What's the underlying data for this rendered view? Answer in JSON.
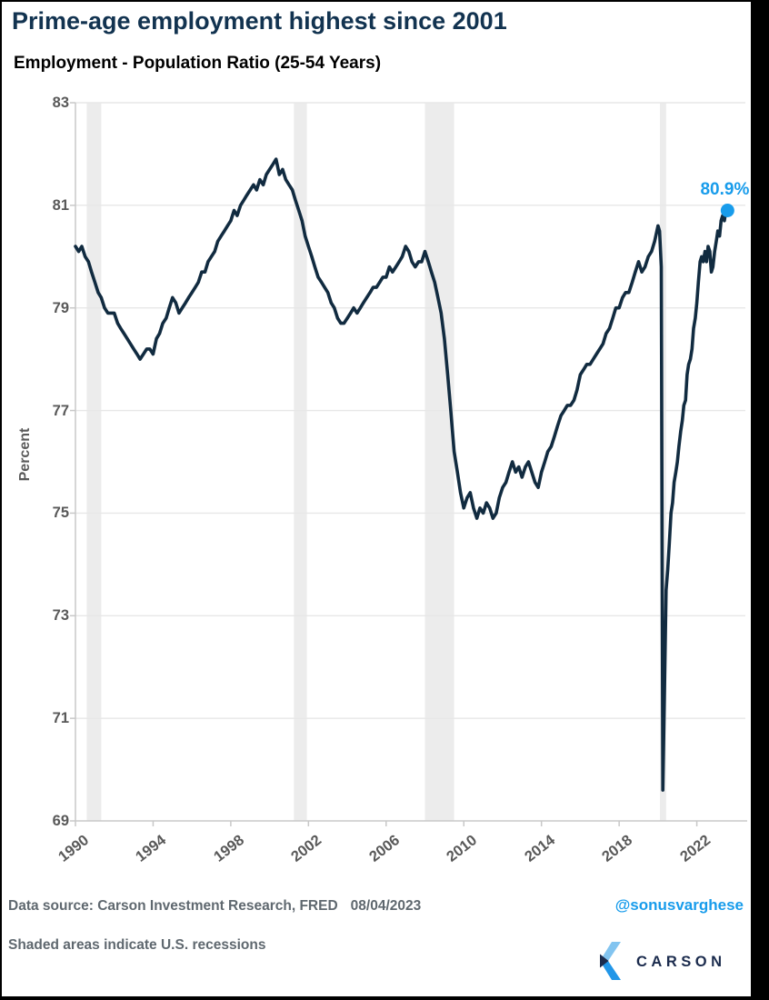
{
  "title": "Prime-age employment highest since 2001",
  "subtitle": "Employment - Population Ratio (25-54 Years)",
  "footer": {
    "source_line": "Data source: Carson Investment Research, FRED",
    "date": "08/04/2023",
    "handle": "@sonusvarghese",
    "note": "Shaded areas indicate U.S. recessions",
    "brand": "CARSON"
  },
  "colors": {
    "accent_blue": "#189ceb",
    "line_navy": "#112b40",
    "title_navy": "#123350",
    "tick_gray": "#595959",
    "footer_gray": "#5f686f",
    "grid": "#e7e7e7",
    "band": "#ececec",
    "axis": "#c8c8c8",
    "brand_navy": "#1b2b4d",
    "logo_light": "#82c4f0",
    "logo_bright": "#2196e8"
  },
  "chart_data": {
    "type": "line",
    "title": "Employment - Population Ratio (25-54 Years)",
    "xlabel": "",
    "ylabel": "Percent",
    "xlim": [
      1990,
      2024.5
    ],
    "ylim": [
      69,
      83
    ],
    "grid": "horizontal",
    "legend": "none",
    "x_ticks": [
      1990,
      1994,
      1998,
      2002,
      2006,
      2010,
      2014,
      2018,
      2022
    ],
    "y_ticks": [
      83,
      81,
      79,
      77,
      75,
      73,
      71,
      69
    ],
    "recessions": [
      [
        1990.58,
        1991.33
      ],
      [
        2001.25,
        2001.92
      ],
      [
        2008.0,
        2009.5
      ],
      [
        2020.1,
        2020.42
      ]
    ],
    "end_label": "80.9%",
    "end_point": [
      2023.58,
      80.9
    ],
    "series": [
      {
        "name": "Employment-Population Ratio (25-54 Years), percent",
        "points": [
          [
            1990.0,
            80.2
          ],
          [
            1990.17,
            80.1
          ],
          [
            1990.33,
            80.2
          ],
          [
            1990.5,
            80.0
          ],
          [
            1990.67,
            79.9
          ],
          [
            1990.83,
            79.7
          ],
          [
            1991.0,
            79.5
          ],
          [
            1991.17,
            79.3
          ],
          [
            1991.33,
            79.2
          ],
          [
            1991.5,
            79.0
          ],
          [
            1991.67,
            78.9
          ],
          [
            1991.83,
            78.9
          ],
          [
            1992.0,
            78.9
          ],
          [
            1992.17,
            78.7
          ],
          [
            1992.33,
            78.6
          ],
          [
            1992.5,
            78.5
          ],
          [
            1992.67,
            78.4
          ],
          [
            1992.83,
            78.3
          ],
          [
            1993.0,
            78.2
          ],
          [
            1993.17,
            78.1
          ],
          [
            1993.33,
            78.0
          ],
          [
            1993.5,
            78.1
          ],
          [
            1993.67,
            78.2
          ],
          [
            1993.83,
            78.2
          ],
          [
            1994.0,
            78.1
          ],
          [
            1994.17,
            78.4
          ],
          [
            1994.33,
            78.5
          ],
          [
            1994.5,
            78.7
          ],
          [
            1994.67,
            78.8
          ],
          [
            1994.83,
            79.0
          ],
          [
            1995.0,
            79.2
          ],
          [
            1995.17,
            79.1
          ],
          [
            1995.33,
            78.9
          ],
          [
            1995.5,
            79.0
          ],
          [
            1995.67,
            79.1
          ],
          [
            1995.83,
            79.2
          ],
          [
            1996.0,
            79.3
          ],
          [
            1996.17,
            79.4
          ],
          [
            1996.33,
            79.5
          ],
          [
            1996.5,
            79.7
          ],
          [
            1996.67,
            79.7
          ],
          [
            1996.83,
            79.9
          ],
          [
            1997.0,
            80.0
          ],
          [
            1997.17,
            80.1
          ],
          [
            1997.33,
            80.3
          ],
          [
            1997.5,
            80.4
          ],
          [
            1997.67,
            80.5
          ],
          [
            1997.83,
            80.6
          ],
          [
            1998.0,
            80.7
          ],
          [
            1998.17,
            80.9
          ],
          [
            1998.33,
            80.8
          ],
          [
            1998.5,
            81.0
          ],
          [
            1998.67,
            81.1
          ],
          [
            1998.83,
            81.2
          ],
          [
            1999.0,
            81.3
          ],
          [
            1999.17,
            81.4
          ],
          [
            1999.33,
            81.3
          ],
          [
            1999.5,
            81.5
          ],
          [
            1999.67,
            81.4
          ],
          [
            1999.83,
            81.6
          ],
          [
            2000.0,
            81.7
          ],
          [
            2000.17,
            81.8
          ],
          [
            2000.33,
            81.9
          ],
          [
            2000.5,
            81.6
          ],
          [
            2000.67,
            81.7
          ],
          [
            2000.83,
            81.5
          ],
          [
            2001.0,
            81.4
          ],
          [
            2001.17,
            81.3
          ],
          [
            2001.33,
            81.1
          ],
          [
            2001.5,
            80.9
          ],
          [
            2001.67,
            80.7
          ],
          [
            2001.83,
            80.4
          ],
          [
            2002.0,
            80.2
          ],
          [
            2002.17,
            80.0
          ],
          [
            2002.33,
            79.8
          ],
          [
            2002.5,
            79.6
          ],
          [
            2002.67,
            79.5
          ],
          [
            2002.83,
            79.4
          ],
          [
            2003.0,
            79.3
          ],
          [
            2003.17,
            79.1
          ],
          [
            2003.33,
            79.0
          ],
          [
            2003.5,
            78.8
          ],
          [
            2003.67,
            78.7
          ],
          [
            2003.83,
            78.7
          ],
          [
            2004.0,
            78.8
          ],
          [
            2004.17,
            78.9
          ],
          [
            2004.33,
            79.0
          ],
          [
            2004.5,
            78.9
          ],
          [
            2004.67,
            79.0
          ],
          [
            2004.83,
            79.1
          ],
          [
            2005.0,
            79.2
          ],
          [
            2005.17,
            79.3
          ],
          [
            2005.33,
            79.4
          ],
          [
            2005.5,
            79.4
          ],
          [
            2005.67,
            79.5
          ],
          [
            2005.83,
            79.6
          ],
          [
            2006.0,
            79.6
          ],
          [
            2006.17,
            79.8
          ],
          [
            2006.33,
            79.7
          ],
          [
            2006.5,
            79.8
          ],
          [
            2006.67,
            79.9
          ],
          [
            2006.83,
            80.0
          ],
          [
            2007.0,
            80.2
          ],
          [
            2007.17,
            80.1
          ],
          [
            2007.33,
            79.9
          ],
          [
            2007.5,
            79.8
          ],
          [
            2007.67,
            79.9
          ],
          [
            2007.83,
            79.9
          ],
          [
            2008.0,
            80.1
          ],
          [
            2008.17,
            79.9
          ],
          [
            2008.33,
            79.7
          ],
          [
            2008.5,
            79.5
          ],
          [
            2008.67,
            79.2
          ],
          [
            2008.83,
            78.9
          ],
          [
            2009.0,
            78.4
          ],
          [
            2009.17,
            77.7
          ],
          [
            2009.33,
            77.0
          ],
          [
            2009.5,
            76.2
          ],
          [
            2009.67,
            75.8
          ],
          [
            2009.83,
            75.4
          ],
          [
            2010.0,
            75.1
          ],
          [
            2010.17,
            75.3
          ],
          [
            2010.33,
            75.4
          ],
          [
            2010.5,
            75.1
          ],
          [
            2010.67,
            74.9
          ],
          [
            2010.83,
            75.1
          ],
          [
            2011.0,
            75.0
          ],
          [
            2011.17,
            75.2
          ],
          [
            2011.33,
            75.1
          ],
          [
            2011.5,
            74.9
          ],
          [
            2011.67,
            75.0
          ],
          [
            2011.83,
            75.3
          ],
          [
            2012.0,
            75.5
          ],
          [
            2012.17,
            75.6
          ],
          [
            2012.33,
            75.8
          ],
          [
            2012.5,
            76.0
          ],
          [
            2012.67,
            75.8
          ],
          [
            2012.83,
            75.9
          ],
          [
            2013.0,
            75.7
          ],
          [
            2013.17,
            75.9
          ],
          [
            2013.33,
            76.0
          ],
          [
            2013.5,
            75.8
          ],
          [
            2013.67,
            75.6
          ],
          [
            2013.83,
            75.5
          ],
          [
            2014.0,
            75.8
          ],
          [
            2014.17,
            76.0
          ],
          [
            2014.33,
            76.2
          ],
          [
            2014.5,
            76.3
          ],
          [
            2014.67,
            76.5
          ],
          [
            2014.83,
            76.7
          ],
          [
            2015.0,
            76.9
          ],
          [
            2015.17,
            77.0
          ],
          [
            2015.33,
            77.1
          ],
          [
            2015.5,
            77.1
          ],
          [
            2015.67,
            77.2
          ],
          [
            2015.83,
            77.4
          ],
          [
            2016.0,
            77.7
          ],
          [
            2016.17,
            77.8
          ],
          [
            2016.33,
            77.9
          ],
          [
            2016.5,
            77.9
          ],
          [
            2016.67,
            78.0
          ],
          [
            2016.83,
            78.1
          ],
          [
            2017.0,
            78.2
          ],
          [
            2017.17,
            78.3
          ],
          [
            2017.33,
            78.5
          ],
          [
            2017.5,
            78.6
          ],
          [
            2017.67,
            78.8
          ],
          [
            2017.83,
            79.0
          ],
          [
            2018.0,
            79.0
          ],
          [
            2018.17,
            79.2
          ],
          [
            2018.33,
            79.3
          ],
          [
            2018.5,
            79.3
          ],
          [
            2018.67,
            79.5
          ],
          [
            2018.83,
            79.7
          ],
          [
            2019.0,
            79.9
          ],
          [
            2019.17,
            79.7
          ],
          [
            2019.33,
            79.8
          ],
          [
            2019.5,
            80.0
          ],
          [
            2019.67,
            80.1
          ],
          [
            2019.83,
            80.3
          ],
          [
            2020.0,
            80.6
          ],
          [
            2020.08,
            80.5
          ],
          [
            2020.17,
            79.8
          ],
          [
            2020.25,
            69.6
          ],
          [
            2020.33,
            71.4
          ],
          [
            2020.42,
            73.5
          ],
          [
            2020.5,
            73.9
          ],
          [
            2020.58,
            74.4
          ],
          [
            2020.67,
            75.0
          ],
          [
            2020.75,
            75.2
          ],
          [
            2020.83,
            75.6
          ],
          [
            2020.92,
            75.8
          ],
          [
            2021.0,
            76.0
          ],
          [
            2021.08,
            76.3
          ],
          [
            2021.17,
            76.6
          ],
          [
            2021.25,
            76.8
          ],
          [
            2021.33,
            77.1
          ],
          [
            2021.42,
            77.2
          ],
          [
            2021.5,
            77.7
          ],
          [
            2021.58,
            77.9
          ],
          [
            2021.67,
            78.0
          ],
          [
            2021.75,
            78.2
          ],
          [
            2021.83,
            78.6
          ],
          [
            2021.92,
            78.8
          ],
          [
            2022.0,
            79.1
          ],
          [
            2022.08,
            79.5
          ],
          [
            2022.17,
            79.9
          ],
          [
            2022.25,
            80.0
          ],
          [
            2022.33,
            79.9
          ],
          [
            2022.42,
            80.1
          ],
          [
            2022.5,
            79.9
          ],
          [
            2022.58,
            80.2
          ],
          [
            2022.67,
            80.1
          ],
          [
            2022.75,
            79.7
          ],
          [
            2022.83,
            79.8
          ],
          [
            2022.92,
            80.1
          ],
          [
            2023.0,
            80.3
          ],
          [
            2023.08,
            80.5
          ],
          [
            2023.17,
            80.4
          ],
          [
            2023.25,
            80.7
          ],
          [
            2023.33,
            80.8
          ],
          [
            2023.42,
            80.7
          ],
          [
            2023.5,
            80.9
          ],
          [
            2023.58,
            80.9
          ]
        ]
      }
    ]
  }
}
